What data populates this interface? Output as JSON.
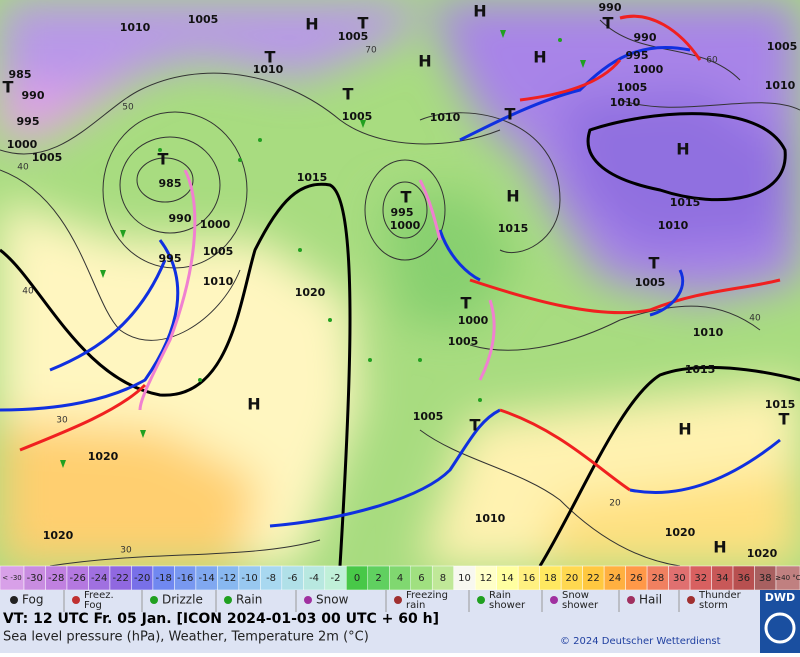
{
  "map": {
    "pressure_labels": [
      "1010",
      "1005",
      "1005",
      "1010",
      "990",
      "990",
      "995",
      "1000",
      "1005",
      "1010",
      "1005",
      "1010",
      "985",
      "990",
      "995",
      "1000",
      "1005",
      "1005",
      "1010",
      "985",
      "990",
      "1000",
      "995",
      "1005",
      "1010",
      "1015",
      "995",
      "1000",
      "1015",
      "1015",
      "1010",
      "1005",
      "1020",
      "1000",
      "1005",
      "1010",
      "1015",
      "1015",
      "1005",
      "1020",
      "1010",
      "1020",
      "1020",
      "1020"
    ],
    "centers": [
      "H",
      "T",
      "H",
      "H",
      "T",
      "H",
      "T",
      "T",
      "T",
      "H",
      "T",
      "H",
      "T",
      "T",
      "T",
      "H",
      "T",
      "H",
      "T",
      "H",
      "T"
    ],
    "contour_labels": [
      "70",
      "60",
      "50",
      "40",
      "40",
      "30",
      "30",
      "20",
      "40"
    ]
  },
  "legend": {
    "temperature_scale": {
      "labels": [
        "< -30",
        "-30",
        "-28",
        "-26",
        "-24",
        "-22",
        "-20",
        "-18",
        "-16",
        "-14",
        "-12",
        "-10",
        "-8",
        "-6",
        "-4",
        "-2",
        "0",
        "2",
        "4",
        "6",
        "8",
        "10",
        "12",
        "14",
        "16",
        "18",
        "20",
        "22",
        "24",
        "26",
        "28",
        "30",
        "32",
        "34",
        "36",
        "38",
        "≥40 °C"
      ],
      "colors": [
        "#d8a0e8",
        "#c88ce0",
        "#c080e0",
        "#b478e0",
        "#a070e0",
        "#9068e0",
        "#7870e8",
        "#7088f0",
        "#7898f0",
        "#80a8f0",
        "#88b8f0",
        "#98c8f0",
        "#a8d8f0",
        "#b0e0e8",
        "#b8e8e0",
        "#c0f0d8",
        "#48c848",
        "#60d060",
        "#80d870",
        "#a0e080",
        "#c0e898",
        "#f8f8f0",
        "#ffffc8",
        "#ffffa0",
        "#fff080",
        "#ffe860",
        "#ffd850",
        "#ffc840",
        "#ffb040",
        "#ff9848",
        "#f08060",
        "#e07070",
        "#d86060",
        "#c85858",
        "#b85050",
        "#a86060",
        "#c08080"
      ]
    },
    "weather": [
      {
        "label_lines": [
          "Fog"
        ]
      },
      {
        "label_lines": [
          "Freez.",
          "Fog"
        ]
      },
      {
        "label_lines": [
          "Drizzle"
        ]
      },
      {
        "label_lines": [
          "Rain"
        ]
      },
      {
        "label_lines": [
          "Snow"
        ]
      },
      {
        "label_lines": [
          "Freezing",
          "rain"
        ]
      },
      {
        "label_lines": [
          "Rain",
          "shower"
        ]
      },
      {
        "label_lines": [
          "Snow",
          "shower"
        ]
      },
      {
        "label_lines": [
          "Hail"
        ]
      },
      {
        "label_lines": [
          "Thunder",
          "storm"
        ]
      }
    ]
  },
  "footer": {
    "valid_time": "VT: 12 UTC Fr.  05 Jan. [ICON 2024-01-03  00 UTC + 60 h]",
    "description": "Sea level pressure (hPa), Weather, Temperature 2m (°C)",
    "copyright": "© 2024 Deutscher Wetterdienst",
    "logo": "DWD"
  }
}
